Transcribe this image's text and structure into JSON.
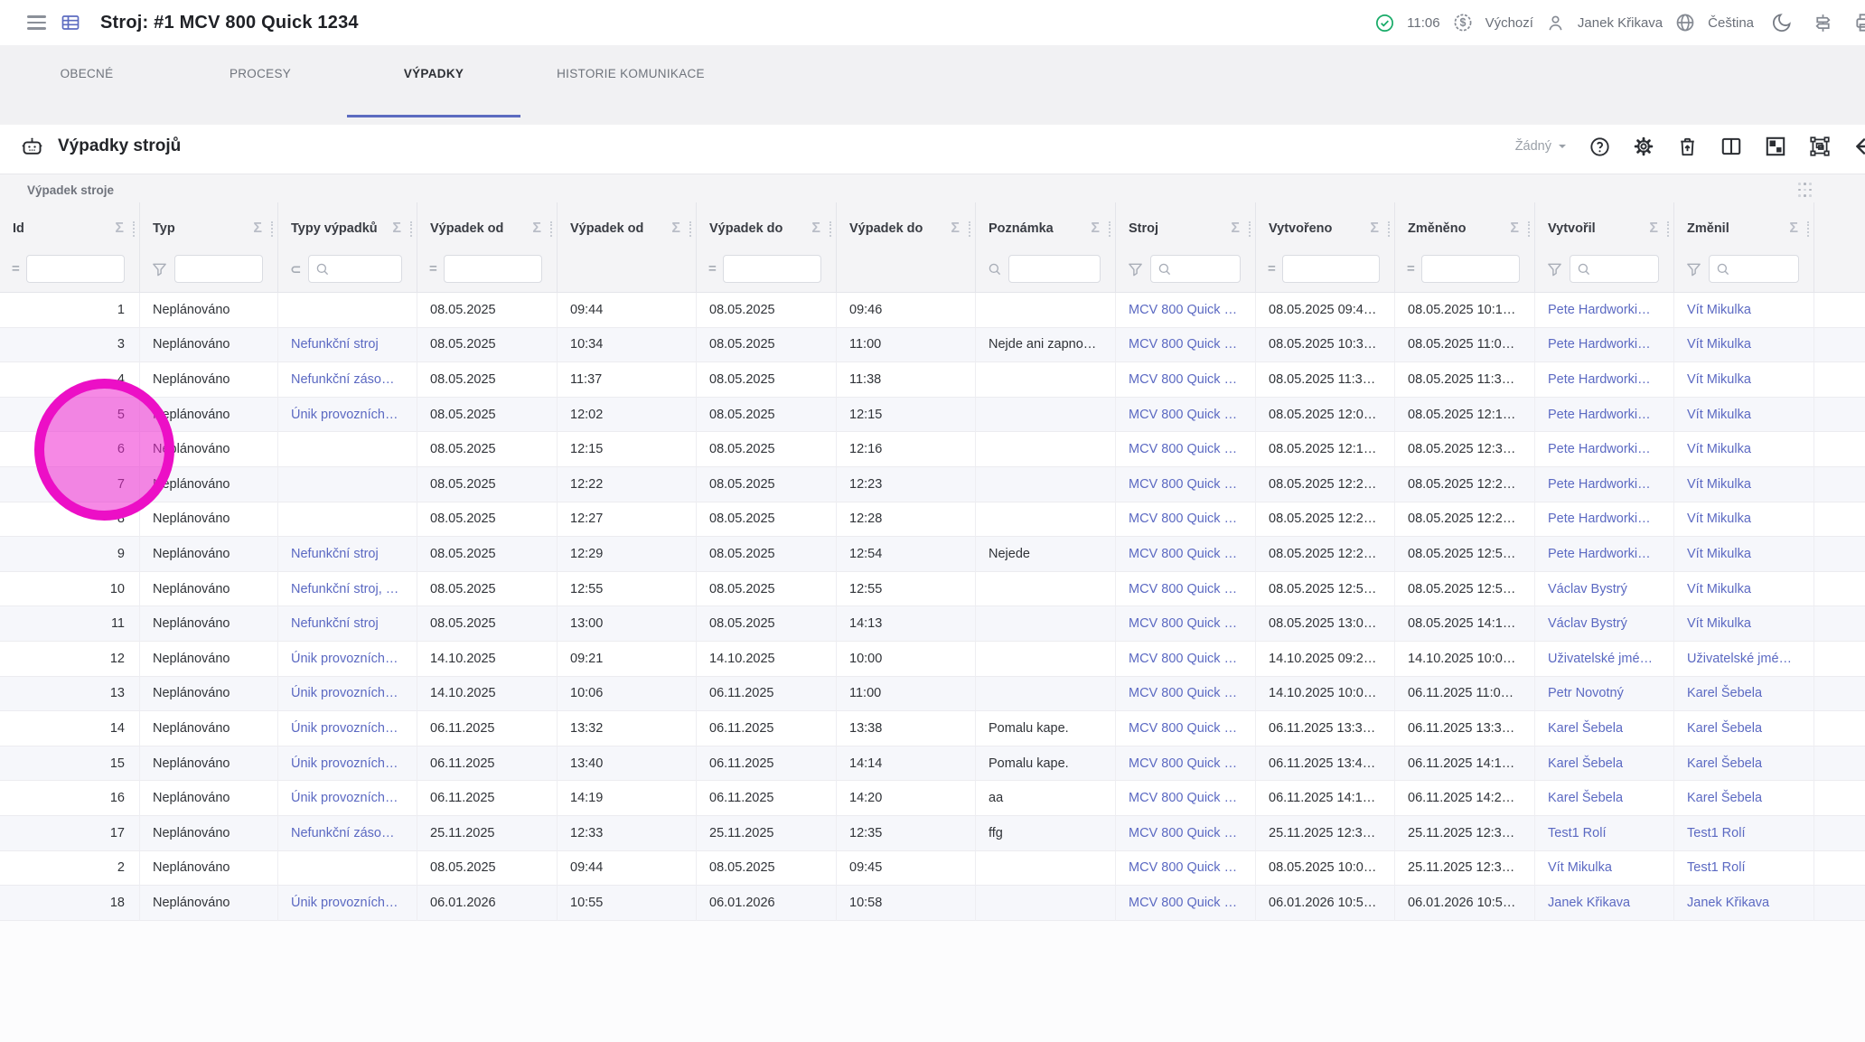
{
  "app_bar": {
    "title": "Stroj: #1 MCV 800 Quick 1234",
    "time": "11:06",
    "currency_label": "Výchozí",
    "user_name": "Janek Křikava",
    "language_label": "Čeština"
  },
  "tabs": [
    {
      "label": "OBECNÉ",
      "active": false
    },
    {
      "label": "PROCESY",
      "active": false
    },
    {
      "label": "VÝPADKY",
      "active": true
    },
    {
      "label": "HISTORIE KOMUNIKACE",
      "active": false
    }
  ],
  "toolbar": {
    "title": "Výpadky strojů",
    "grouping_label": "Žádný"
  },
  "table": {
    "group_label": "Výpadek stroje",
    "link_columns": [
      2,
      8,
      11,
      12
    ],
    "columns": [
      {
        "key": "id",
        "label": "Id",
        "filter": "eq"
      },
      {
        "key": "typ",
        "label": "Typ",
        "filter": "funnel"
      },
      {
        "key": "typy-vypadku",
        "label": "Typy výpadků",
        "filter": "subset-search"
      },
      {
        "key": "vypadek-od-datum",
        "label": "Výpadek od",
        "filter": "eq"
      },
      {
        "key": "vypadek-od-cas",
        "label": "Výpadek od",
        "filter": "none"
      },
      {
        "key": "vypadek-do-datum",
        "label": "Výpadek do",
        "filter": "eq"
      },
      {
        "key": "vypadek-do-cas",
        "label": "Výpadek do",
        "filter": "none"
      },
      {
        "key": "poznamka",
        "label": "Poznámka",
        "filter": "search"
      },
      {
        "key": "stroj",
        "label": "Stroj",
        "filter": "funnel-search"
      },
      {
        "key": "vytvoreno",
        "label": "Vytvořeno",
        "filter": "eq"
      },
      {
        "key": "zmeneno",
        "label": "Změněno",
        "filter": "eq"
      },
      {
        "key": "vytvoril",
        "label": "Vytvořil",
        "filter": "funnel-search"
      },
      {
        "key": "zmenil",
        "label": "Změnil",
        "filter": "funnel-search"
      }
    ],
    "rows": [
      [
        "1",
        "Neplánováno",
        "",
        "08.05.2025",
        "09:44",
        "08.05.2025",
        "09:46",
        "",
        "MCV 800 Quick …",
        "08.05.2025 09:4…",
        "08.05.2025 10:1…",
        "Pete Hardworki…",
        "Vít Mikulka"
      ],
      [
        "3",
        "Neplánováno",
        "Nefunkční stroj",
        "08.05.2025",
        "10:34",
        "08.05.2025",
        "11:00",
        "Nejde ani zapno…",
        "MCV 800 Quick …",
        "08.05.2025 10:3…",
        "08.05.2025 11:0…",
        "Pete Hardworki…",
        "Vít Mikulka"
      ],
      [
        "4",
        "Neplánováno",
        "Nefunkční záso…",
        "08.05.2025",
        "11:37",
        "08.05.2025",
        "11:38",
        "",
        "MCV 800 Quick …",
        "08.05.2025 11:3…",
        "08.05.2025 11:3…",
        "Pete Hardworki…",
        "Vít Mikulka"
      ],
      [
        "5",
        "Neplánováno",
        "Únik provozních…",
        "08.05.2025",
        "12:02",
        "08.05.2025",
        "12:15",
        "",
        "MCV 800 Quick …",
        "08.05.2025 12:0…",
        "08.05.2025 12:1…",
        "Pete Hardworki…",
        "Vít Mikulka"
      ],
      [
        "6",
        "Neplánováno",
        "",
        "08.05.2025",
        "12:15",
        "08.05.2025",
        "12:16",
        "",
        "MCV 800 Quick …",
        "08.05.2025 12:1…",
        "08.05.2025 12:3…",
        "Pete Hardworki…",
        "Vít Mikulka"
      ],
      [
        "7",
        "Neplánováno",
        "",
        "08.05.2025",
        "12:22",
        "08.05.2025",
        "12:23",
        "",
        "MCV 800 Quick …",
        "08.05.2025 12:2…",
        "08.05.2025 12:2…",
        "Pete Hardworki…",
        "Vít Mikulka"
      ],
      [
        "8",
        "Neplánováno",
        "",
        "08.05.2025",
        "12:27",
        "08.05.2025",
        "12:28",
        "",
        "MCV 800 Quick …",
        "08.05.2025 12:2…",
        "08.05.2025 12:2…",
        "Pete Hardworki…",
        "Vít Mikulka"
      ],
      [
        "9",
        "Neplánováno",
        "Nefunkční stroj",
        "08.05.2025",
        "12:29",
        "08.05.2025",
        "12:54",
        "Nejede",
        "MCV 800 Quick …",
        "08.05.2025 12:2…",
        "08.05.2025 12:5…",
        "Pete Hardworki…",
        "Vít Mikulka"
      ],
      [
        "10",
        "Neplánováno",
        "Nefunkční stroj, …",
        "08.05.2025",
        "12:55",
        "08.05.2025",
        "12:55",
        "",
        "MCV 800 Quick …",
        "08.05.2025 12:5…",
        "08.05.2025 12:5…",
        "Václav Bystrý",
        "Vít Mikulka"
      ],
      [
        "11",
        "Neplánováno",
        "Nefunkční stroj",
        "08.05.2025",
        "13:00",
        "08.05.2025",
        "14:13",
        "",
        "MCV 800 Quick …",
        "08.05.2025 13:0…",
        "08.05.2025 14:1…",
        "Václav Bystrý",
        "Vít Mikulka"
      ],
      [
        "12",
        "Neplánováno",
        "Únik provozních…",
        "14.10.2025",
        "09:21",
        "14.10.2025",
        "10:00",
        "",
        "MCV 800 Quick …",
        "14.10.2025 09:2…",
        "14.10.2025 10:0…",
        "Uživatelské jmé…",
        "Uživatelské jmé…"
      ],
      [
        "13",
        "Neplánováno",
        "Únik provozních…",
        "14.10.2025",
        "10:06",
        "06.11.2025",
        "11:00",
        "",
        "MCV 800 Quick …",
        "14.10.2025 10:0…",
        "06.11.2025 11:0…",
        "Petr Novotný",
        "Karel Šebela"
      ],
      [
        "14",
        "Neplánováno",
        "Únik provozních…",
        "06.11.2025",
        "13:32",
        "06.11.2025",
        "13:38",
        "Pomalu kape.",
        "MCV 800 Quick …",
        "06.11.2025 13:3…",
        "06.11.2025 13:3…",
        "Karel Šebela",
        "Karel Šebela"
      ],
      [
        "15",
        "Neplánováno",
        "Únik provozních…",
        "06.11.2025",
        "13:40",
        "06.11.2025",
        "14:14",
        "Pomalu kape.",
        "MCV 800 Quick …",
        "06.11.2025 13:4…",
        "06.11.2025 14:1…",
        "Karel Šebela",
        "Karel Šebela"
      ],
      [
        "16",
        "Neplánováno",
        "Únik provozních…",
        "06.11.2025",
        "14:19",
        "06.11.2025",
        "14:20",
        "aa",
        "MCV 800 Quick …",
        "06.11.2025 14:1…",
        "06.11.2025 14:2…",
        "Karel Šebela",
        "Karel Šebela"
      ],
      [
        "17",
        "Neplánováno",
        "Nefunkční záso…",
        "25.11.2025",
        "12:33",
        "25.11.2025",
        "12:35",
        "ffg",
        "MCV 800 Quick …",
        "25.11.2025 12:3…",
        "25.11.2025 12:3…",
        "Test1 Rolí",
        "Test1 Rolí"
      ],
      [
        "2",
        "Neplánováno",
        "",
        "08.05.2025",
        "09:44",
        "08.05.2025",
        "09:45",
        "",
        "MCV 800 Quick …",
        "08.05.2025 10:0…",
        "25.11.2025 12:3…",
        "Vít Mikulka",
        "Test1 Rolí"
      ],
      [
        "18",
        "Neplánováno",
        "Únik provozních…",
        "06.01.2026",
        "10:55",
        "06.01.2026",
        "10:58",
        "",
        "MCV 800 Quick …",
        "06.01.2026 10:5…",
        "06.01.2026 10:5…",
        "Janek Křikava",
        "Janek Křikava"
      ]
    ]
  },
  "colors": {
    "accent": "#5c6bc0",
    "link": "#5b69c2",
    "success": "#18ab68",
    "highlight_ring": "#ec0fc6"
  }
}
